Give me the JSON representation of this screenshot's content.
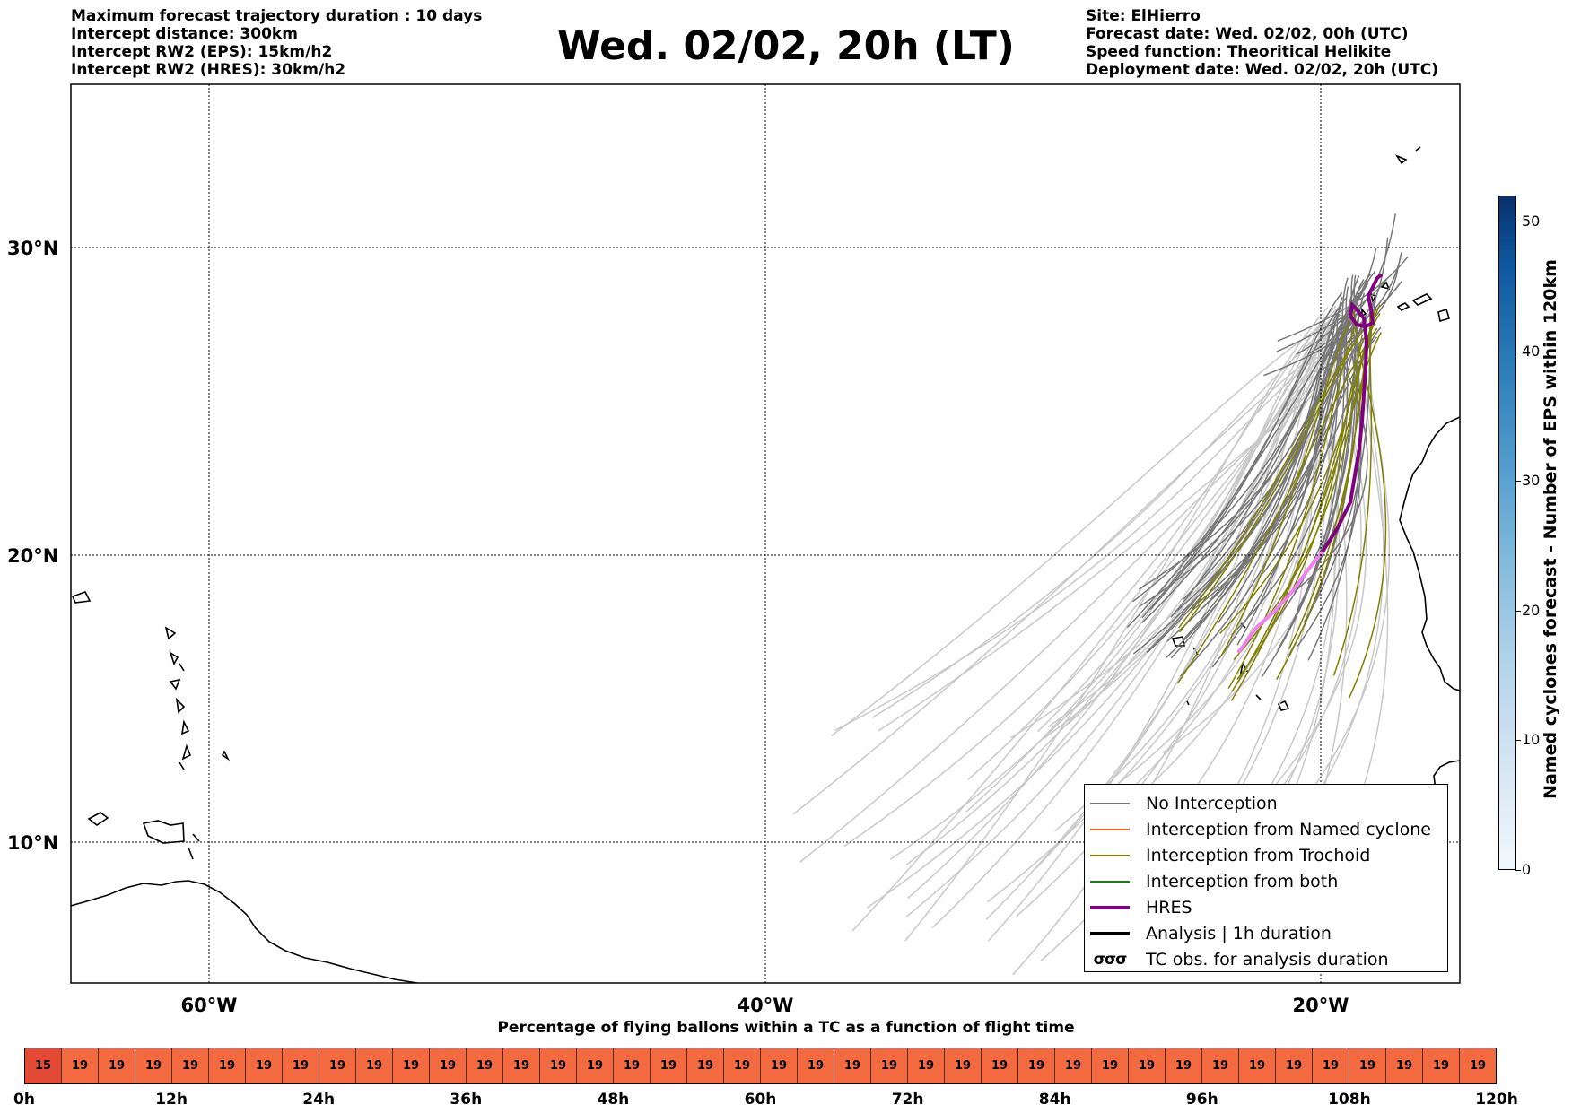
{
  "header_left": [
    "Maximum forecast trajectory duration : 10 days",
    "Intercept distance: 300km",
    "Intercept RW2 (EPS):  15km/h2",
    "Intercept RW2 (HRES): 30km/h2"
  ],
  "title": "Wed. 02/02, 20h (LT)",
  "header_right": [
    "Site: ElHierro",
    "Forecast date: Wed. 02/02, 00h (UTC)",
    "Speed function: Theoritical Helikite",
    "Deployment date: Wed. 02/02, 20h (UTC)"
  ],
  "map": {
    "lat_labels": [
      "30°N",
      "20°N",
      "10°N"
    ],
    "lon_labels": [
      "60°W",
      "40°W",
      "20°W"
    ],
    "lat_range": [
      4.7,
      34.0
    ],
    "lon_range": [
      -65.0,
      -15.0
    ],
    "gridlines": true,
    "colors": {
      "no_interception": "#777777",
      "ensemble_faded": "#c8c8c8",
      "trochoid": "#808000",
      "named_cyclone": "#ff5a1a",
      "both": "#1a7a1a",
      "hres": "#800080",
      "hres_early": "#ee82ee",
      "analysis": "#000000"
    }
  },
  "legend": {
    "items": [
      {
        "label": "No Interception",
        "icon": "gray-line"
      },
      {
        "label": "Interception from Named cyclone",
        "icon": "orange-line"
      },
      {
        "label": "Interception from Trochoid",
        "icon": "olive-line"
      },
      {
        "label": "Interception from both",
        "icon": "green-line"
      },
      {
        "label": "HRES",
        "icon": "purple-thick-line"
      },
      {
        "label": "Analysis | 1h duration",
        "icon": "black-thick-line"
      },
      {
        "label": "TC obs. for analysis duration",
        "icon": "cyclone-symbols",
        "glyph": "σσσ"
      }
    ]
  },
  "colorbar": {
    "label": "Named cyclones forecast - Number of EPS within 120km",
    "ticks": [
      0,
      10,
      20,
      30,
      40,
      50
    ],
    "max": 52
  },
  "timeline": {
    "title": "Percentage of flying ballons within a TC as a function of flight time",
    "values": [
      15,
      19,
      19,
      19,
      19,
      19,
      19,
      19,
      19,
      19,
      19,
      19,
      19,
      19,
      19,
      19,
      19,
      19,
      19,
      19,
      19,
      19,
      19,
      19,
      19,
      19,
      19,
      19,
      19,
      19,
      19,
      19,
      19,
      19,
      19,
      19,
      19,
      19,
      19,
      19
    ],
    "cell_colors": {
      "first": "#e34a33",
      "rest": "#f46a40"
    },
    "labels": [
      "0h",
      "12h",
      "24h",
      "36h",
      "48h",
      "60h",
      "72h",
      "84h",
      "96h",
      "108h",
      "120h"
    ]
  }
}
